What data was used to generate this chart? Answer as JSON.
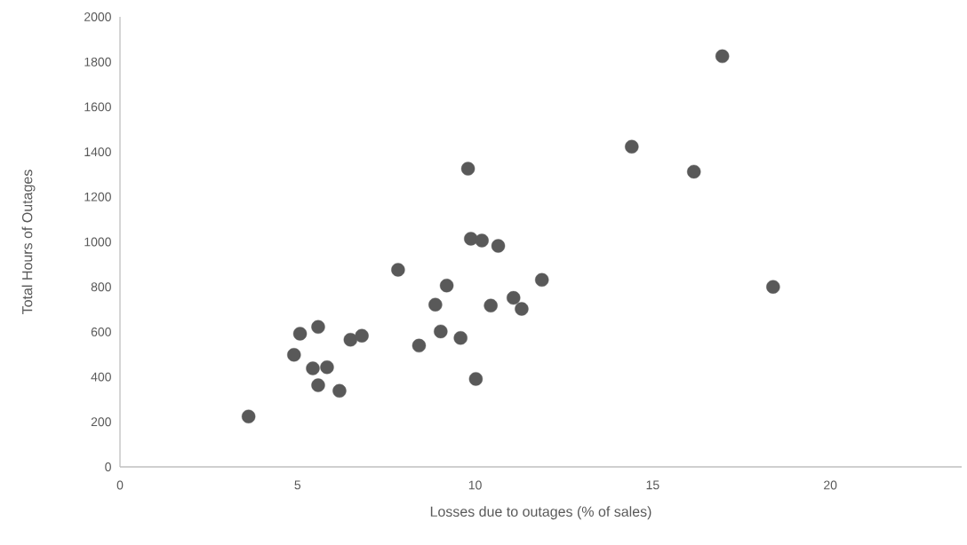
{
  "chart_data": {
    "type": "scatter",
    "xlabel": "Losses due to outages (% of sales)",
    "ylabel": "Total Hours of Outages",
    "xlim": [
      0,
      23.7
    ],
    "xticks": [
      0,
      5,
      10,
      15,
      20
    ],
    "ylim": [
      0,
      2000
    ],
    "yticks": [
      0,
      200,
      400,
      600,
      800,
      1000,
      1200,
      1400,
      1600,
      1800,
      2000
    ],
    "grid": false,
    "marker": "circle",
    "series": [
      {
        "color": "#595959",
        "x": [
          3.62,
          5.07,
          5.58,
          4.9,
          5.43,
          5.83,
          5.58,
          6.18,
          6.49,
          6.81,
          8.42,
          8.88,
          9.03,
          9.59,
          10.02,
          10.44,
          11.08,
          11.31,
          9.8,
          9.88,
          10.19,
          10.65,
          7.83,
          9.2,
          11.88,
          16.96,
          14.41,
          16.16,
          18.39
        ],
        "values": [
          224,
          592,
          622,
          498,
          438,
          443,
          363,
          338,
          565,
          583,
          539,
          721,
          602,
          573,
          391,
          717,
          751,
          702,
          1325,
          1014,
          1006,
          982,
          876,
          806,
          831,
          1825,
          1423,
          1312,
          800
        ]
      }
    ]
  }
}
